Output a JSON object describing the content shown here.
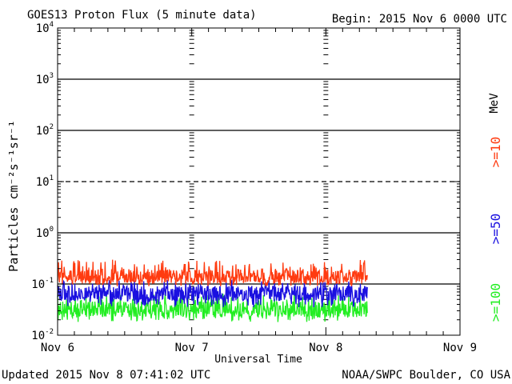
{
  "chart_data": {
    "type": "line",
    "title": "GOES13 Proton Flux (5 minute data)",
    "begin_label": "Begin: 2015 Nov 6 0000 UTC",
    "xlabel": "Universal Time",
    "ylabel": "Particles cm⁻²s⁻¹sr⁻¹",
    "categories": [
      "Nov 6",
      "Nov 7",
      "Nov 8",
      "Nov 9"
    ],
    "xlim_days": [
      0,
      3
    ],
    "ylim_log10": [
      -2,
      4
    ],
    "yscale": "log",
    "ytick_exponents": [
      "-2",
      "-1",
      "0",
      "1",
      "2",
      "3",
      "4"
    ],
    "solid_gridline_decades": [
      -1,
      0,
      2,
      3
    ],
    "dashed_gridline_decades": [
      1
    ],
    "series": [
      {
        "name": ">=10 MeV",
        "label": ">=10",
        "color": "#ff3b10",
        "median_flux": 0.14,
        "range": [
          0.09,
          0.3
        ],
        "end_day": 2.31
      },
      {
        "name": ">=50 MeV",
        "label": ">=50",
        "color": "#1a10e0",
        "median_flux": 0.065,
        "range": [
          0.035,
          0.12
        ],
        "end_day": 2.31
      },
      {
        "name": ">=100 MeV",
        "label": ">=100",
        "color": "#22ee22",
        "median_flux": 0.032,
        "range": [
          0.018,
          0.065
        ],
        "end_day": 2.31
      }
    ],
    "energy_unit": "MeV"
  },
  "footer": {
    "updated": "Updated 2015 Nov  8 07:41:02 UTC",
    "source": "NOAA/SWPC Boulder, CO USA"
  },
  "colors": {
    "axis": "#000000",
    "background": "#ffffff"
  }
}
